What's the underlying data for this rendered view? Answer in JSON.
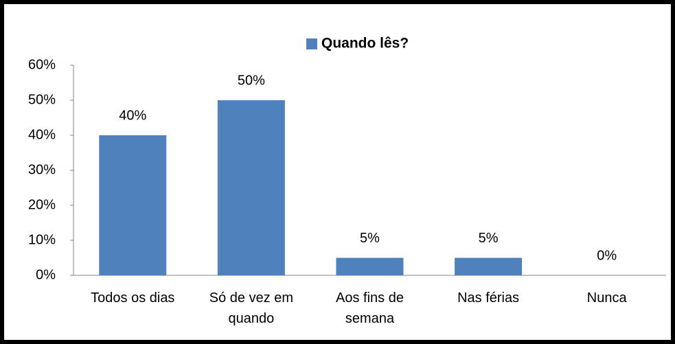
{
  "chart_data": {
    "type": "bar",
    "categories": [
      "Todos os dias",
      "Só de vez em quando",
      "Aos fins de semana",
      "Nas férias",
      "Nunca"
    ],
    "series": [
      {
        "name": "Quando lês?",
        "color": "#4f81bd",
        "values": [
          40,
          50,
          5,
          5,
          0
        ],
        "value_labels": [
          "40%",
          "50%",
          "5%",
          "5%",
          "0%"
        ]
      }
    ],
    "ylim": [
      0,
      60
    ],
    "yticks": [
      {
        "value": 0,
        "label": "0%"
      },
      {
        "value": 10,
        "label": "10%"
      },
      {
        "value": 20,
        "label": "20%"
      },
      {
        "value": 30,
        "label": "30%"
      },
      {
        "value": 40,
        "label": "40%"
      },
      {
        "value": 50,
        "label": "50%"
      },
      {
        "value": 60,
        "label": "60%"
      }
    ],
    "legend": "top",
    "grid": false
  }
}
